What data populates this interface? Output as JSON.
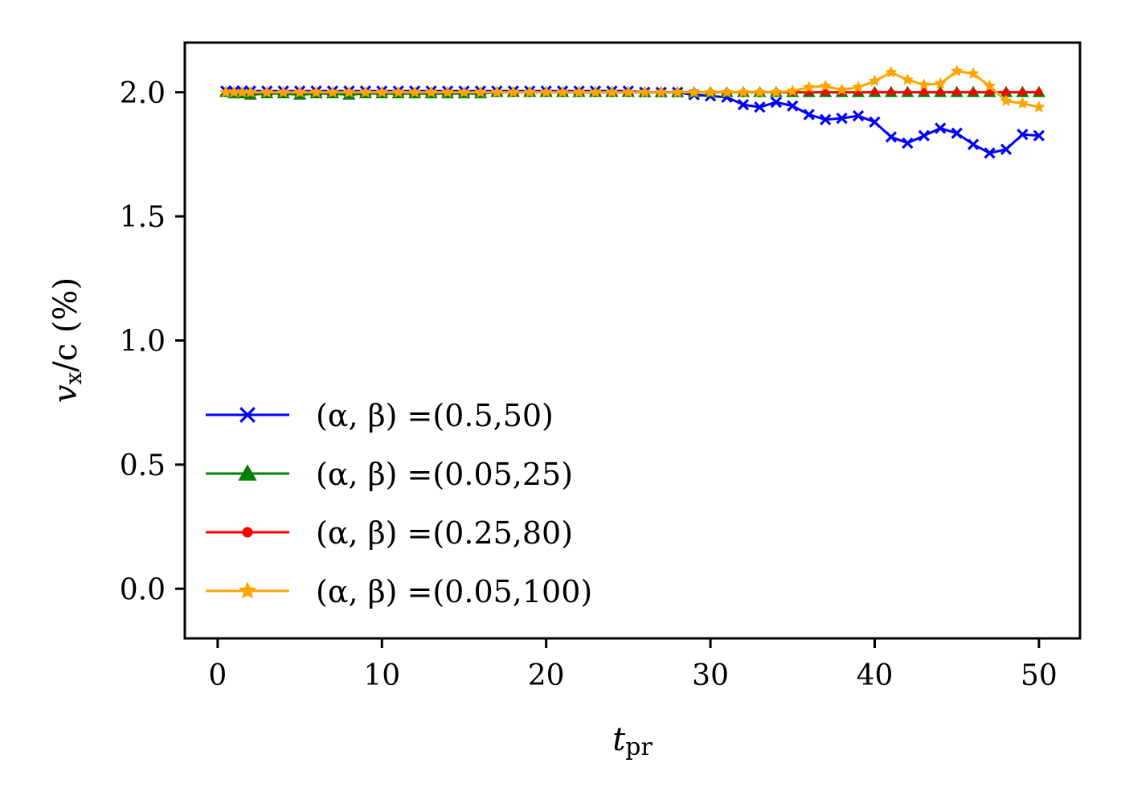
{
  "chart_data": {
    "type": "line",
    "title": "",
    "xlabel": "t",
    "xlabel_sub": "pr",
    "ylabel": "v",
    "ylabel_sub": "x",
    "ylabel_rest": "/c (%)",
    "xlim": [
      -2,
      52.5
    ],
    "ylim": [
      -0.2,
      2.2
    ],
    "xticks": [
      0,
      10,
      20,
      30,
      40,
      50
    ],
    "yticks": [
      0.0,
      0.5,
      1.0,
      1.5,
      2.0
    ],
    "xtick_labels": [
      "0",
      "10",
      "20",
      "30",
      "40",
      "50"
    ],
    "ytick_labels": [
      "0.0",
      "0.5",
      "1.0",
      "1.5",
      "2.0"
    ],
    "grid": false,
    "legend_position": "lower-left",
    "x": [
      0.5,
      1,
      1.5,
      2,
      3,
      4,
      5,
      6,
      7,
      8,
      9,
      10,
      11,
      12,
      13,
      14,
      15,
      16,
      17,
      18,
      19,
      20,
      21,
      22,
      23,
      24,
      25,
      26,
      27,
      28,
      29,
      30,
      31,
      32,
      33,
      34,
      35,
      36,
      37,
      38,
      39,
      40,
      41,
      42,
      43,
      44,
      45,
      46,
      47,
      48,
      49,
      50
    ],
    "series": [
      {
        "name": "(α, β) =(0.5,50)",
        "color": "#0000ff",
        "marker": "x",
        "values": [
          2.005,
          2.005,
          2.005,
          2.005,
          2.005,
          2.005,
          2.005,
          2.005,
          2.005,
          2.005,
          2.005,
          2.005,
          2.005,
          2.005,
          2.005,
          2.005,
          2.005,
          2.005,
          2.005,
          2.005,
          2.005,
          2.005,
          2.005,
          2.005,
          2.005,
          2.005,
          2.005,
          2.0,
          2.0,
          2.0,
          1.99,
          1.985,
          1.98,
          1.95,
          1.94,
          1.96,
          1.945,
          1.91,
          1.89,
          1.895,
          1.905,
          1.88,
          1.82,
          1.795,
          1.825,
          1.855,
          1.835,
          1.79,
          1.755,
          1.77,
          1.83,
          1.825
        ]
      },
      {
        "name": "(α, β) =(0.05,25)",
        "color": "#008000",
        "marker": "triangle",
        "values": [
          2.0,
          1.995,
          1.995,
          1.99,
          1.995,
          1.995,
          1.99,
          1.995,
          1.995,
          1.99,
          1.995,
          1.995,
          1.995,
          1.995,
          1.995,
          1.995,
          1.995,
          1.995,
          2.0,
          2.0,
          2.0,
          2.0,
          2.0,
          2.0,
          2.0,
          2.0,
          2.0,
          2.0,
          2.0,
          2.0,
          2.0,
          2.0,
          2.0,
          2.0,
          2.0,
          2.0,
          2.0,
          2.0,
          2.0,
          2.0,
          2.0,
          2.0,
          2.0,
          2.0,
          2.0,
          2.0,
          2.0,
          2.0,
          2.0,
          2.0,
          2.0,
          2.0
        ]
      },
      {
        "name": "(α, β) =(0.25,80)",
        "color": "#ff0000",
        "marker": "dot",
        "values": [
          2.0,
          2.0,
          2.0,
          2.0,
          2.0,
          2.0,
          2.0,
          2.0,
          2.0,
          2.0,
          2.0,
          2.0,
          2.0,
          2.0,
          2.0,
          2.0,
          2.0,
          2.0,
          2.0,
          2.0,
          2.0,
          2.0,
          2.0,
          2.0,
          2.0,
          2.0,
          2.0,
          2.0,
          2.0,
          2.0,
          2.0,
          2.0,
          2.0,
          2.0,
          2.0,
          2.0,
          2.0,
          2.0,
          2.0,
          2.0,
          2.0,
          2.0,
          2.0,
          2.0,
          2.0,
          2.0,
          2.0,
          2.0,
          2.0,
          2.0,
          2.0,
          2.0
        ]
      },
      {
        "name": "(α, β) =(0.05,100)",
        "color": "#ffa500",
        "marker": "star",
        "values": [
          2.0,
          2.0,
          2.0,
          2.0,
          2.0,
          2.0,
          2.0,
          2.0,
          2.0,
          2.0,
          2.0,
          2.0,
          2.0,
          2.0,
          2.0,
          2.0,
          2.0,
          2.0,
          2.0,
          2.0,
          2.0,
          2.0,
          2.0,
          2.0,
          2.0,
          2.0,
          2.0,
          2.0,
          2.0,
          2.0,
          2.0,
          2.0,
          2.0,
          2.0,
          2.0,
          2.0,
          2.005,
          2.02,
          2.025,
          2.01,
          2.02,
          2.045,
          2.08,
          2.05,
          2.03,
          2.035,
          2.085,
          2.075,
          2.025,
          1.965,
          1.955,
          1.94
        ]
      }
    ]
  }
}
